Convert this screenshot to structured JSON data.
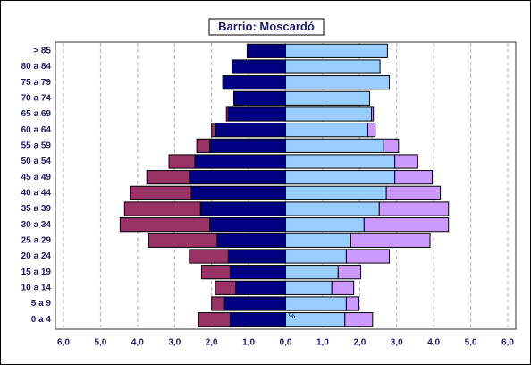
{
  "chart_data": {
    "type": "pyramid",
    "title": "Barrio: Moscardó",
    "categories": [
      "> 85",
      "80 a 84",
      "75 a 79",
      "70 a 74",
      "65 a 69",
      "60 a 64",
      "55 a 59",
      "50 a 54",
      "45 a 49",
      "40 a 44",
      "35 a 39",
      "30 a 34",
      "25 a 29",
      "20 a 24",
      "15 a 19",
      "10 a 14",
      "5 a 9",
      "0 a 4"
    ],
    "series": [
      {
        "color": "#000080",
        "values": [
          -1.04,
          -1.45,
          -1.7,
          -1.4,
          -1.55,
          -1.9,
          -2.05,
          -2.45,
          -2.6,
          -2.55,
          -2.3,
          -2.05,
          -1.85,
          -1.55,
          -1.5,
          -1.35,
          -1.65,
          -1.5
        ]
      },
      {
        "color": "#993366",
        "values": [
          0,
          0,
          0,
          0,
          -0.05,
          -0.1,
          -0.35,
          -0.7,
          -1.15,
          -1.65,
          -2.05,
          -2.42,
          -1.85,
          -1.05,
          -0.77,
          -0.55,
          -0.35,
          -0.85
        ]
      },
      {
        "color": "#99ccff",
        "values": [
          2.75,
          2.55,
          2.8,
          2.27,
          2.32,
          2.22,
          2.65,
          2.95,
          2.95,
          2.72,
          2.53,
          2.12,
          1.76,
          1.64,
          1.42,
          1.25,
          1.64,
          1.6
        ]
      },
      {
        "color": "#cc99ff",
        "values": [
          0,
          0,
          0,
          0,
          0.05,
          0.2,
          0.4,
          0.62,
          1.01,
          1.46,
          1.87,
          2.28,
          2.14,
          1.16,
          0.61,
          0.59,
          0.34,
          0.75
        ]
      }
    ],
    "xlim": [
      -6,
      6
    ],
    "xticks": [
      {
        "value": -6,
        "label": "6,0"
      },
      {
        "value": -5,
        "label": "5,0"
      },
      {
        "value": -4,
        "label": "4,0"
      },
      {
        "value": -3,
        "label": "3,0"
      },
      {
        "value": -2,
        "label": "2,0"
      },
      {
        "value": -1,
        "label": "1,0"
      },
      {
        "value": 0,
        "label": "0,0"
      },
      {
        "value": 1,
        "label": "1,0"
      },
      {
        "value": 2,
        "label": "2,0"
      },
      {
        "value": 3,
        "label": "3,0"
      },
      {
        "value": 4,
        "label": "4,0"
      },
      {
        "value": 5,
        "label": "5,0"
      },
      {
        "value": 6,
        "label": "6,0"
      }
    ],
    "annotation": "%",
    "grid": true
  }
}
